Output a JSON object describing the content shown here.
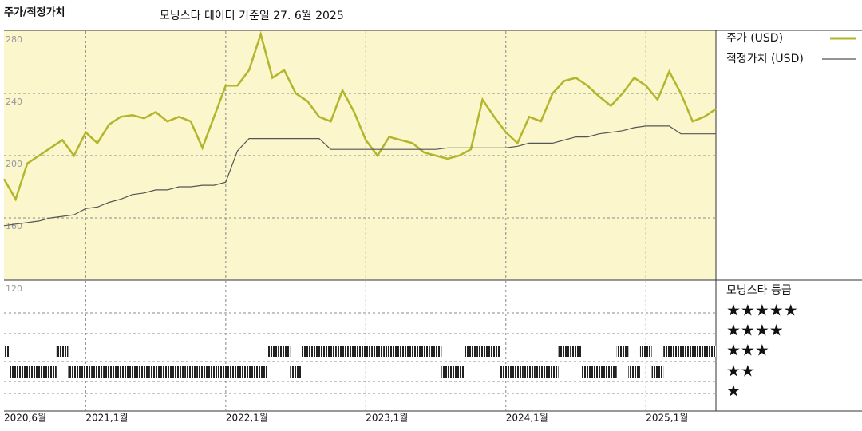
{
  "chart_data": {
    "type": "line",
    "title": "주가/적정가치",
    "subtitle": "모닝스타 데이터 기준일 27. 6월 2025",
    "x": [
      "2020-06",
      "2020-07",
      "2020-08",
      "2020-09",
      "2020-10",
      "2020-11",
      "2020-12",
      "2021-01",
      "2021-02",
      "2021-03",
      "2021-04",
      "2021-05",
      "2021-06",
      "2021-07",
      "2021-08",
      "2021-09",
      "2021-10",
      "2021-11",
      "2021-12",
      "2022-01",
      "2022-02",
      "2022-03",
      "2022-04",
      "2022-05",
      "2022-06",
      "2022-07",
      "2022-08",
      "2022-09",
      "2022-10",
      "2022-11",
      "2022-12",
      "2023-01",
      "2023-02",
      "2023-03",
      "2023-04",
      "2023-05",
      "2023-06",
      "2023-07",
      "2023-08",
      "2023-09",
      "2023-10",
      "2023-11",
      "2023-12",
      "2024-01",
      "2024-02",
      "2024-03",
      "2024-04",
      "2024-05",
      "2024-06",
      "2024-07",
      "2024-08",
      "2024-09",
      "2024-10",
      "2024-11",
      "2024-12",
      "2025-01",
      "2025-02",
      "2025-03",
      "2025-04",
      "2025-05",
      "2025-06",
      "2025-07"
    ],
    "series": [
      {
        "name": "주가 (USD)",
        "color": "#b3b52c",
        "values": [
          185,
          172,
          195,
          200,
          205,
          210,
          200,
          215,
          208,
          220,
          225,
          226,
          224,
          228,
          222,
          225,
          222,
          205,
          225,
          245,
          245,
          255,
          278,
          250,
          255,
          240,
          235,
          225,
          222,
          242,
          228,
          210,
          200,
          212,
          210,
          208,
          202,
          200,
          198,
          200,
          204,
          236,
          225,
          215,
          208,
          225,
          222,
          240,
          248,
          250,
          245,
          238,
          232,
          240,
          250,
          245,
          236,
          254,
          240,
          222,
          225,
          230
        ]
      },
      {
        "name": "적정가치 (USD)",
        "color": "#555555",
        "values": [
          155,
          156,
          157,
          158,
          160,
          161,
          162,
          166,
          167,
          170,
          172,
          175,
          176,
          178,
          178,
          180,
          180,
          181,
          181,
          183,
          203,
          211,
          211,
          211,
          211,
          211,
          211,
          211,
          204,
          204,
          204,
          204,
          204,
          204,
          204,
          204,
          204,
          204,
          205,
          205,
          205,
          205,
          205,
          205,
          206,
          208,
          208,
          208,
          210,
          212,
          212,
          214,
          215,
          216,
          218,
          219,
          219,
          219,
          214,
          214,
          214,
          214
        ]
      }
    ],
    "xlim": [
      "2020-06",
      "2025-07"
    ],
    "xticks": [
      {
        "value": "2020-06",
        "label": "2020,6월"
      },
      {
        "value": "2021-01",
        "label": "2021,1월"
      },
      {
        "value": "2022-01",
        "label": "2022,1월"
      },
      {
        "value": "2023-01",
        "label": "2023,1월"
      },
      {
        "value": "2024-01",
        "label": "2024,1월"
      },
      {
        "value": "2025-01",
        "label": "2025,1월"
      }
    ],
    "ylim": [
      120,
      280
    ],
    "yticks": [
      120,
      160,
      200,
      240,
      280
    ],
    "grid": true,
    "ratings": {
      "title": "모닝스타 등급",
      "levels": [
        "★★★★★",
        "★★★★",
        "★★★",
        "★★",
        "★"
      ],
      "values": [
        3,
        2,
        2,
        2,
        2,
        3,
        2,
        2,
        2,
        2,
        2,
        2,
        2,
        2,
        2,
        2,
        2,
        2,
        2,
        2,
        2,
        2,
        2,
        3,
        3,
        2,
        3,
        3,
        3,
        3,
        3,
        3,
        3,
        3,
        3,
        3,
        3,
        3,
        2,
        2,
        3,
        3,
        3,
        2,
        2,
        2,
        2,
        2,
        3,
        3,
        2,
        2,
        2,
        3,
        2,
        3,
        2,
        3,
        3,
        3,
        3,
        3
      ]
    }
  }
}
